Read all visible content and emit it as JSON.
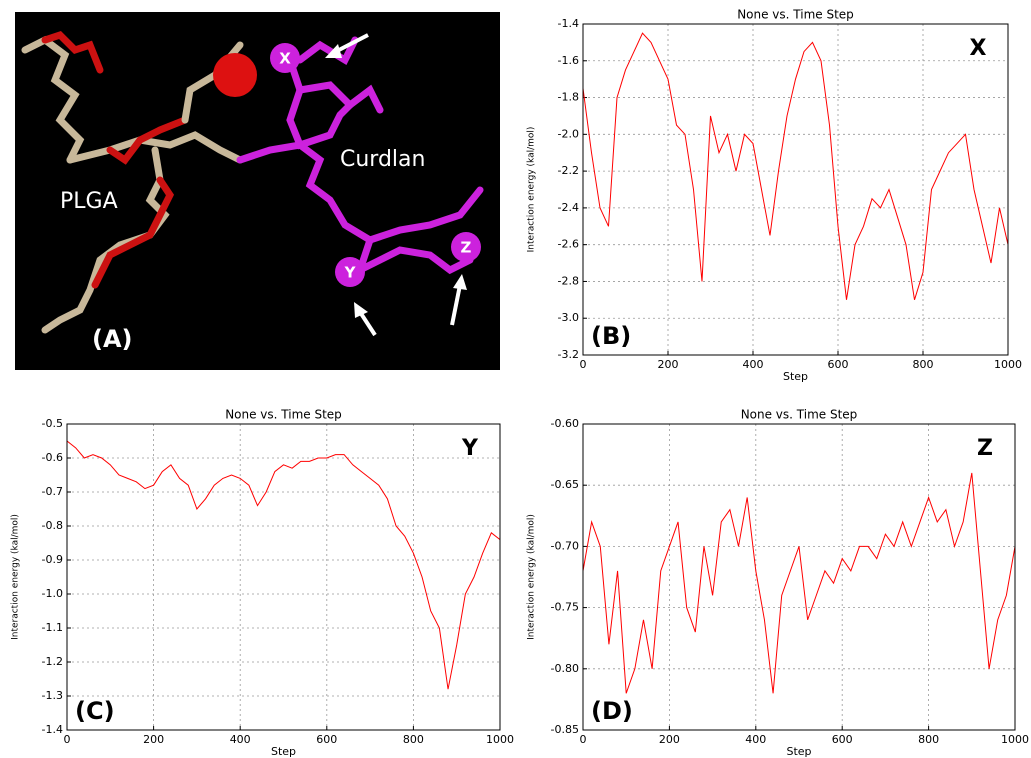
{
  "image_panel": {
    "molecule_labels": [
      "PLGA",
      "Curdlan"
    ],
    "site_labels": [
      "X",
      "Y",
      "Z"
    ],
    "panel_label": "(A)"
  },
  "chart_data": [
    {
      "type": "line",
      "title": "None vs. Time Step",
      "x_label": "Step",
      "y_label": "Interaction energy (kal/mol)",
      "annotations": [
        "X",
        "(B)"
      ],
      "color": "#ff0000",
      "grid": true,
      "xlim": [
        0,
        1000
      ],
      "xticks": [
        0,
        200,
        400,
        600,
        800,
        1000
      ],
      "ylim": [
        -3.2,
        -1.4
      ],
      "yticks": [
        -3.2,
        {
          "value": -3,
          "label": "-3.0"
        },
        -2.8,
        -2.6,
        -2.4,
        -2.2,
        {
          "value": -2,
          "label": "-2.0"
        },
        -1.8,
        -1.6,
        -1.4
      ],
      "x": [
        0,
        20,
        40,
        60,
        80,
        100,
        120,
        140,
        160,
        180,
        200,
        220,
        240,
        260,
        280,
        300,
        320,
        340,
        360,
        380,
        400,
        420,
        440,
        460,
        480,
        500,
        520,
        540,
        560,
        580,
        600,
        620,
        640,
        660,
        680,
        700,
        720,
        740,
        760,
        780,
        800,
        820,
        840,
        860,
        880,
        900,
        920,
        940,
        960,
        980,
        1000
      ],
      "values": [
        -1.75,
        -2.1,
        -2.4,
        -2.5,
        -1.8,
        -1.65,
        -1.55,
        -1.45,
        -1.5,
        -1.6,
        -1.7,
        -1.95,
        -2.0,
        -2.3,
        -2.8,
        -1.9,
        -2.1,
        -2.0,
        -2.2,
        -2.0,
        -2.05,
        -2.3,
        -2.55,
        -2.2,
        -1.9,
        -1.7,
        -1.55,
        -1.5,
        -1.6,
        -1.95,
        -2.5,
        -2.9,
        -2.6,
        -2.5,
        -2.35,
        -2.4,
        -2.3,
        -2.45,
        -2.6,
        -2.9,
        -2.75,
        -2.3,
        -2.2,
        -2.1,
        -2.05,
        -2.0,
        -2.3,
        -2.5,
        -2.7,
        -2.4,
        -2.6
      ]
    },
    {
      "type": "line",
      "title": "None vs. Time Step",
      "x_label": "Step",
      "y_label": "Interaction energy (kal/mol)",
      "annotations": [
        "Y",
        "(C)"
      ],
      "color": "#ff0000",
      "grid": true,
      "xlim": [
        0,
        1000
      ],
      "xticks": [
        0,
        200,
        400,
        600,
        800,
        1000
      ],
      "ylim": [
        -1.4,
        -0.5
      ],
      "yticks": [
        -1.4,
        -1.3,
        -1.2,
        -1.1,
        {
          "value": -1,
          "label": "-1.0"
        },
        -0.9,
        -0.8,
        -0.7,
        -0.6,
        -0.5
      ],
      "x": [
        0,
        20,
        40,
        60,
        80,
        100,
        120,
        140,
        160,
        180,
        200,
        220,
        240,
        260,
        280,
        300,
        320,
        340,
        360,
        380,
        400,
        420,
        440,
        460,
        480,
        500,
        520,
        540,
        560,
        580,
        600,
        620,
        640,
        660,
        680,
        700,
        720,
        740,
        760,
        780,
        800,
        820,
        840,
        860,
        880,
        900,
        920,
        940,
        960,
        980,
        1000
      ],
      "values": [
        -0.55,
        -0.57,
        -0.6,
        -0.59,
        -0.6,
        -0.62,
        -0.65,
        -0.66,
        -0.67,
        -0.69,
        -0.68,
        -0.64,
        -0.62,
        -0.66,
        -0.68,
        -0.75,
        -0.72,
        -0.68,
        -0.66,
        -0.65,
        -0.66,
        -0.68,
        -0.74,
        -0.7,
        -0.64,
        -0.62,
        -0.63,
        -0.61,
        -0.61,
        -0.6,
        -0.6,
        -0.59,
        -0.59,
        -0.62,
        -0.64,
        -0.66,
        -0.68,
        -0.72,
        -0.8,
        -0.83,
        -0.88,
        -0.95,
        -1.05,
        -1.1,
        -1.28,
        -1.15,
        -1.0,
        -0.95,
        -0.88,
        -0.82,
        -0.84
      ]
    },
    {
      "type": "line",
      "title": "None vs. Time Step",
      "x_label": "Step",
      "y_label": "Interaction energy (kal/mol)",
      "annotations": [
        "Z",
        "(D)"
      ],
      "color": "#ff0000",
      "grid": true,
      "xlim": [
        0,
        1000
      ],
      "xticks": [
        0,
        200,
        400,
        600,
        800,
        1000
      ],
      "ylim": [
        -0.85,
        -0.6
      ],
      "yticks": [
        -0.85,
        {
          "value": -0.8,
          "label": "-0.80"
        },
        -0.75,
        {
          "value": -0.7,
          "label": "-0.70"
        },
        -0.65,
        {
          "value": -0.6,
          "label": "-0.60"
        }
      ],
      "x": [
        0,
        20,
        40,
        60,
        80,
        100,
        120,
        140,
        160,
        180,
        200,
        220,
        240,
        260,
        280,
        300,
        320,
        340,
        360,
        380,
        400,
        420,
        440,
        460,
        480,
        500,
        520,
        540,
        560,
        580,
        600,
        620,
        640,
        660,
        680,
        700,
        720,
        740,
        760,
        780,
        800,
        820,
        840,
        860,
        880,
        900,
        920,
        940,
        960,
        980,
        1000
      ],
      "values": [
        -0.72,
        -0.68,
        -0.7,
        -0.78,
        -0.72,
        -0.82,
        -0.8,
        -0.76,
        -0.8,
        -0.72,
        -0.7,
        -0.68,
        -0.75,
        -0.77,
        -0.7,
        -0.74,
        -0.68,
        -0.67,
        -0.7,
        -0.66,
        -0.72,
        -0.76,
        -0.82,
        -0.74,
        -0.72,
        -0.7,
        -0.76,
        -0.74,
        -0.72,
        -0.73,
        -0.71,
        -0.72,
        -0.7,
        -0.7,
        -0.71,
        -0.69,
        -0.7,
        -0.68,
        -0.7,
        -0.68,
        -0.66,
        -0.68,
        -0.67,
        -0.7,
        -0.68,
        -0.64,
        -0.72,
        -0.8,
        -0.76,
        -0.74,
        -0.7
      ]
    }
  ]
}
